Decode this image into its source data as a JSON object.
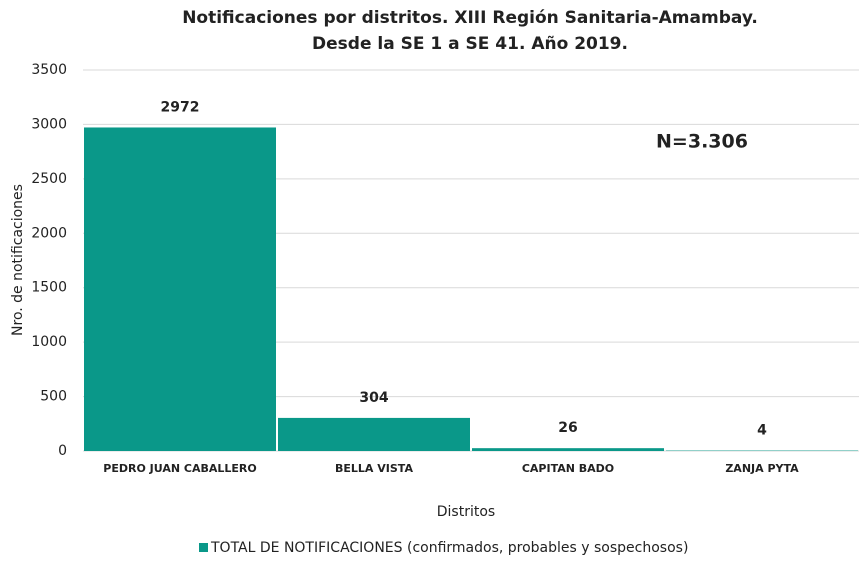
{
  "chart_data": {
    "type": "bar",
    "title": "Notificaciones por distritos. XIII Región Sanitaria-Amambay.",
    "subtitle": "Desde la SE 1 a SE 41. Año 2019.",
    "x_label": "Distritos",
    "y_label": "Nro. de notificaciones",
    "annotation": "N=3.306",
    "categories": [
      "PEDRO JUAN CABALLERO",
      "BELLA VISTA",
      "CAPITAN BADO",
      "ZANJA PYTA"
    ],
    "series": [
      {
        "name": "TOTAL DE NOTIFICACIONES (confirmados, probables y sospechosos)",
        "color": "#0a9889",
        "values": [
          2972,
          304,
          26,
          4
        ]
      }
    ],
    "ylim": [
      0,
      3500
    ],
    "yticks": [
      0,
      500,
      1000,
      1500,
      2000,
      2500,
      3000,
      3500
    ],
    "grid": true,
    "legend": "bottom"
  }
}
